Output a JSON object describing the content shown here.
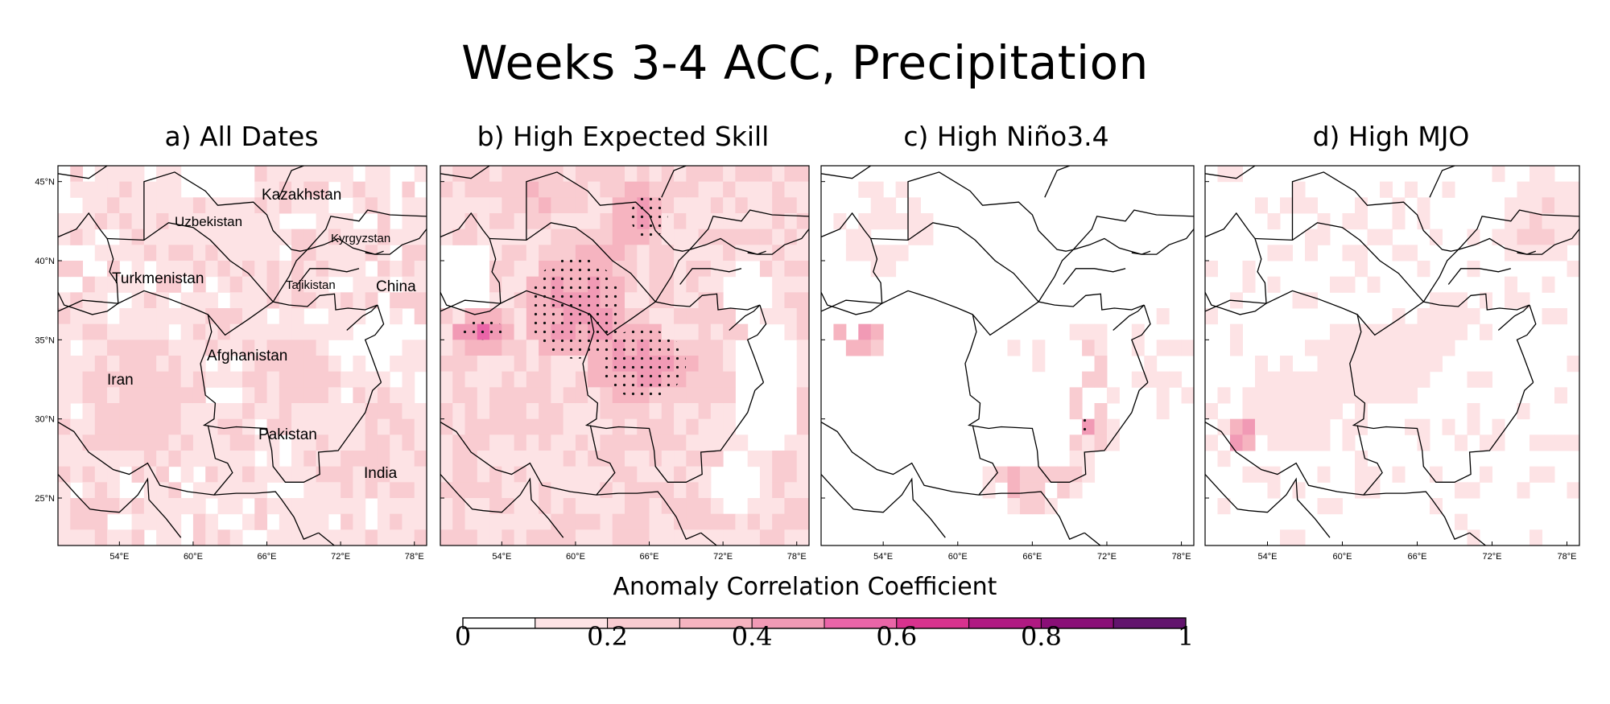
{
  "title": "Weeks 3-4 ACC, Precipitation",
  "panels": [
    {
      "title": "a) All Dates"
    },
    {
      "title": "b) High Expected Skill"
    },
    {
      "title": "c) High Niño3.4"
    },
    {
      "title": "d) High MJO"
    }
  ],
  "map_labels": {
    "kazakhstan": "Kazakhstan",
    "uzbekistan": "Uzbekistan",
    "kyrgyzstan": "Kyrgyzstan",
    "turkmenistan": "Turkmenistan",
    "tajikistan": "Tajikistan",
    "china": "China",
    "afghanistan": "Afghanistan",
    "iran": "Iran",
    "pakistan": "Pakistan",
    "india": "India"
  },
  "colorbar": {
    "label": "Anomaly Correlation Coefficient",
    "tick_labels": [
      "0",
      "0.2",
      "0.4",
      "0.6",
      "0.8",
      "1"
    ],
    "colors": [
      "#ffffff",
      "#fde3e5",
      "#f9ccd1",
      "#f6b4c0",
      "#f19ab5",
      "#ea65a8",
      "#d8328e",
      "#b01a82",
      "#8a0f77",
      "#62146d"
    ]
  },
  "chart_data": {
    "type": "heatmap",
    "title": "Weeks 3-4 ACC, Precipitation",
    "variable": "Anomaly Correlation Coefficient",
    "lon_range": [
      49,
      79
    ],
    "lat_range": [
      22,
      46
    ],
    "x_ticks": [
      "54°E",
      "60°E",
      "66°E",
      "72°E",
      "78°E"
    ],
    "y_ticks": [
      "45°N",
      "40°N",
      "35°N",
      "30°N",
      "25°N"
    ],
    "color_range": [
      0,
      1
    ],
    "levels": [
      0,
      0.1,
      0.2,
      0.3,
      0.4,
      0.5,
      0.6,
      0.7,
      0.8,
      0.9,
      1.0
    ],
    "stippling": "significant at 95% level",
    "panels": [
      {
        "name": "a) All Dates",
        "background_acc": 0.15,
        "regions": [
          {
            "lon": 56,
            "lat": 31,
            "rx": 5,
            "ry": 4,
            "acc": 0.25
          },
          {
            "lon": 68,
            "lat": 33,
            "rx": 4,
            "ry": 3,
            "acc": 0.25
          },
          {
            "lon": 75,
            "lat": 29,
            "rx": 3,
            "ry": 4,
            "acc": 0.22
          },
          {
            "lon": 52,
            "lat": 24.5,
            "rx": 2,
            "ry": 1.5,
            "acc": 0.25
          },
          {
            "lon": 60,
            "lat": 42,
            "rx": 6,
            "ry": 3,
            "acc": 0.15
          }
        ],
        "empty_regions": [
          {
            "lon": 75,
            "lat": 35,
            "rx": 2,
            "ry": 2
          },
          {
            "lon": 62,
            "lat": 45,
            "rx": 3,
            "ry": 1.5
          }
        ],
        "stipple": []
      },
      {
        "name": "b) High Expected Skill",
        "background_acc": 0.2,
        "regions": [
          {
            "lon": 60,
            "lat": 37,
            "rx": 4.5,
            "ry": 3.5,
            "acc": 0.45
          },
          {
            "lon": 65,
            "lat": 33.5,
            "rx": 4,
            "ry": 2.5,
            "acc": 0.45
          },
          {
            "lon": 52.5,
            "lat": 35.5,
            "rx": 2.5,
            "ry": 1.2,
            "acc": 0.5
          },
          {
            "lon": 65,
            "lat": 43,
            "rx": 2.5,
            "ry": 2,
            "acc": 0.42
          },
          {
            "lon": 61,
            "lat": 40,
            "rx": 4,
            "ry": 2,
            "acc": 0.32
          },
          {
            "lon": 55,
            "lat": 29.5,
            "rx": 4,
            "ry": 2,
            "acc": 0.25
          },
          {
            "lon": 70,
            "lat": 33,
            "rx": 2,
            "ry": 2.5,
            "acc": 0.3
          },
          {
            "lon": 57,
            "lat": 44,
            "rx": 4,
            "ry": 2,
            "acc": 0.28
          }
        ],
        "empty_regions": [
          {
            "lon": 51,
            "lat": 39,
            "rx": 2,
            "ry": 2.5
          },
          {
            "lon": 75.5,
            "lat": 32,
            "rx": 3,
            "ry": 4
          },
          {
            "lon": 74,
            "lat": 38,
            "rx": 2,
            "ry": 2
          },
          {
            "lon": 73,
            "lat": 26,
            "rx": 2,
            "ry": 2
          }
        ],
        "stipple": [
          {
            "lon": 60,
            "lat": 37,
            "rx": 3.8,
            "ry": 3.2
          },
          {
            "lon": 65.5,
            "lat": 33.5,
            "rx": 3.5,
            "ry": 2.2
          },
          {
            "lon": 66,
            "lat": 42.8,
            "rx": 1.5,
            "ry": 1.4
          },
          {
            "lon": 52.5,
            "lat": 35.6,
            "rx": 1.8,
            "ry": 0.6
          }
        ]
      },
      {
        "name": "c) High Niño3.4",
        "background_acc": 0.0,
        "regions": [
          {
            "lon": 70.5,
            "lat": 31,
            "rx": 2.5,
            "ry": 5,
            "acc": 0.25
          },
          {
            "lon": 70.5,
            "lat": 30,
            "rx": 0.9,
            "ry": 1.1,
            "acc": 0.45
          },
          {
            "lon": 66,
            "lat": 25.8,
            "rx": 4,
            "ry": 1.5,
            "acc": 0.3
          },
          {
            "lon": 51.5,
            "lat": 35.2,
            "rx": 2.5,
            "ry": 1.2,
            "acc": 0.4
          },
          {
            "lon": 54,
            "lat": 42,
            "rx": 4,
            "ry": 3,
            "acc": 0.15
          },
          {
            "lon": 76,
            "lat": 33,
            "rx": 3,
            "ry": 4,
            "acc": 0.15
          },
          {
            "lon": 66,
            "lat": 34,
            "rx": 2,
            "ry": 1.5,
            "acc": 0.12
          }
        ],
        "empty_regions": [],
        "stipple": [
          {
            "lon": 70.4,
            "lat": 29.5,
            "rx": 0.4,
            "ry": 0.6
          }
        ]
      },
      {
        "name": "d) High MJO",
        "background_acc": 0.06,
        "regions": [
          {
            "lon": 52,
            "lat": 29,
            "rx": 1.5,
            "ry": 1.5,
            "acc": 0.4
          },
          {
            "lon": 63,
            "lat": 33.5,
            "rx": 5,
            "ry": 3,
            "acc": 0.18
          },
          {
            "lon": 76,
            "lat": 42.5,
            "rx": 3,
            "ry": 2.5,
            "acc": 0.22
          },
          {
            "lon": 56,
            "lat": 30.5,
            "rx": 4,
            "ry": 3,
            "acc": 0.16
          },
          {
            "lon": 69,
            "lat": 36,
            "rx": 3,
            "ry": 2.5,
            "acc": 0.15
          }
        ],
        "empty_regions": [],
        "stipple": []
      }
    ]
  }
}
